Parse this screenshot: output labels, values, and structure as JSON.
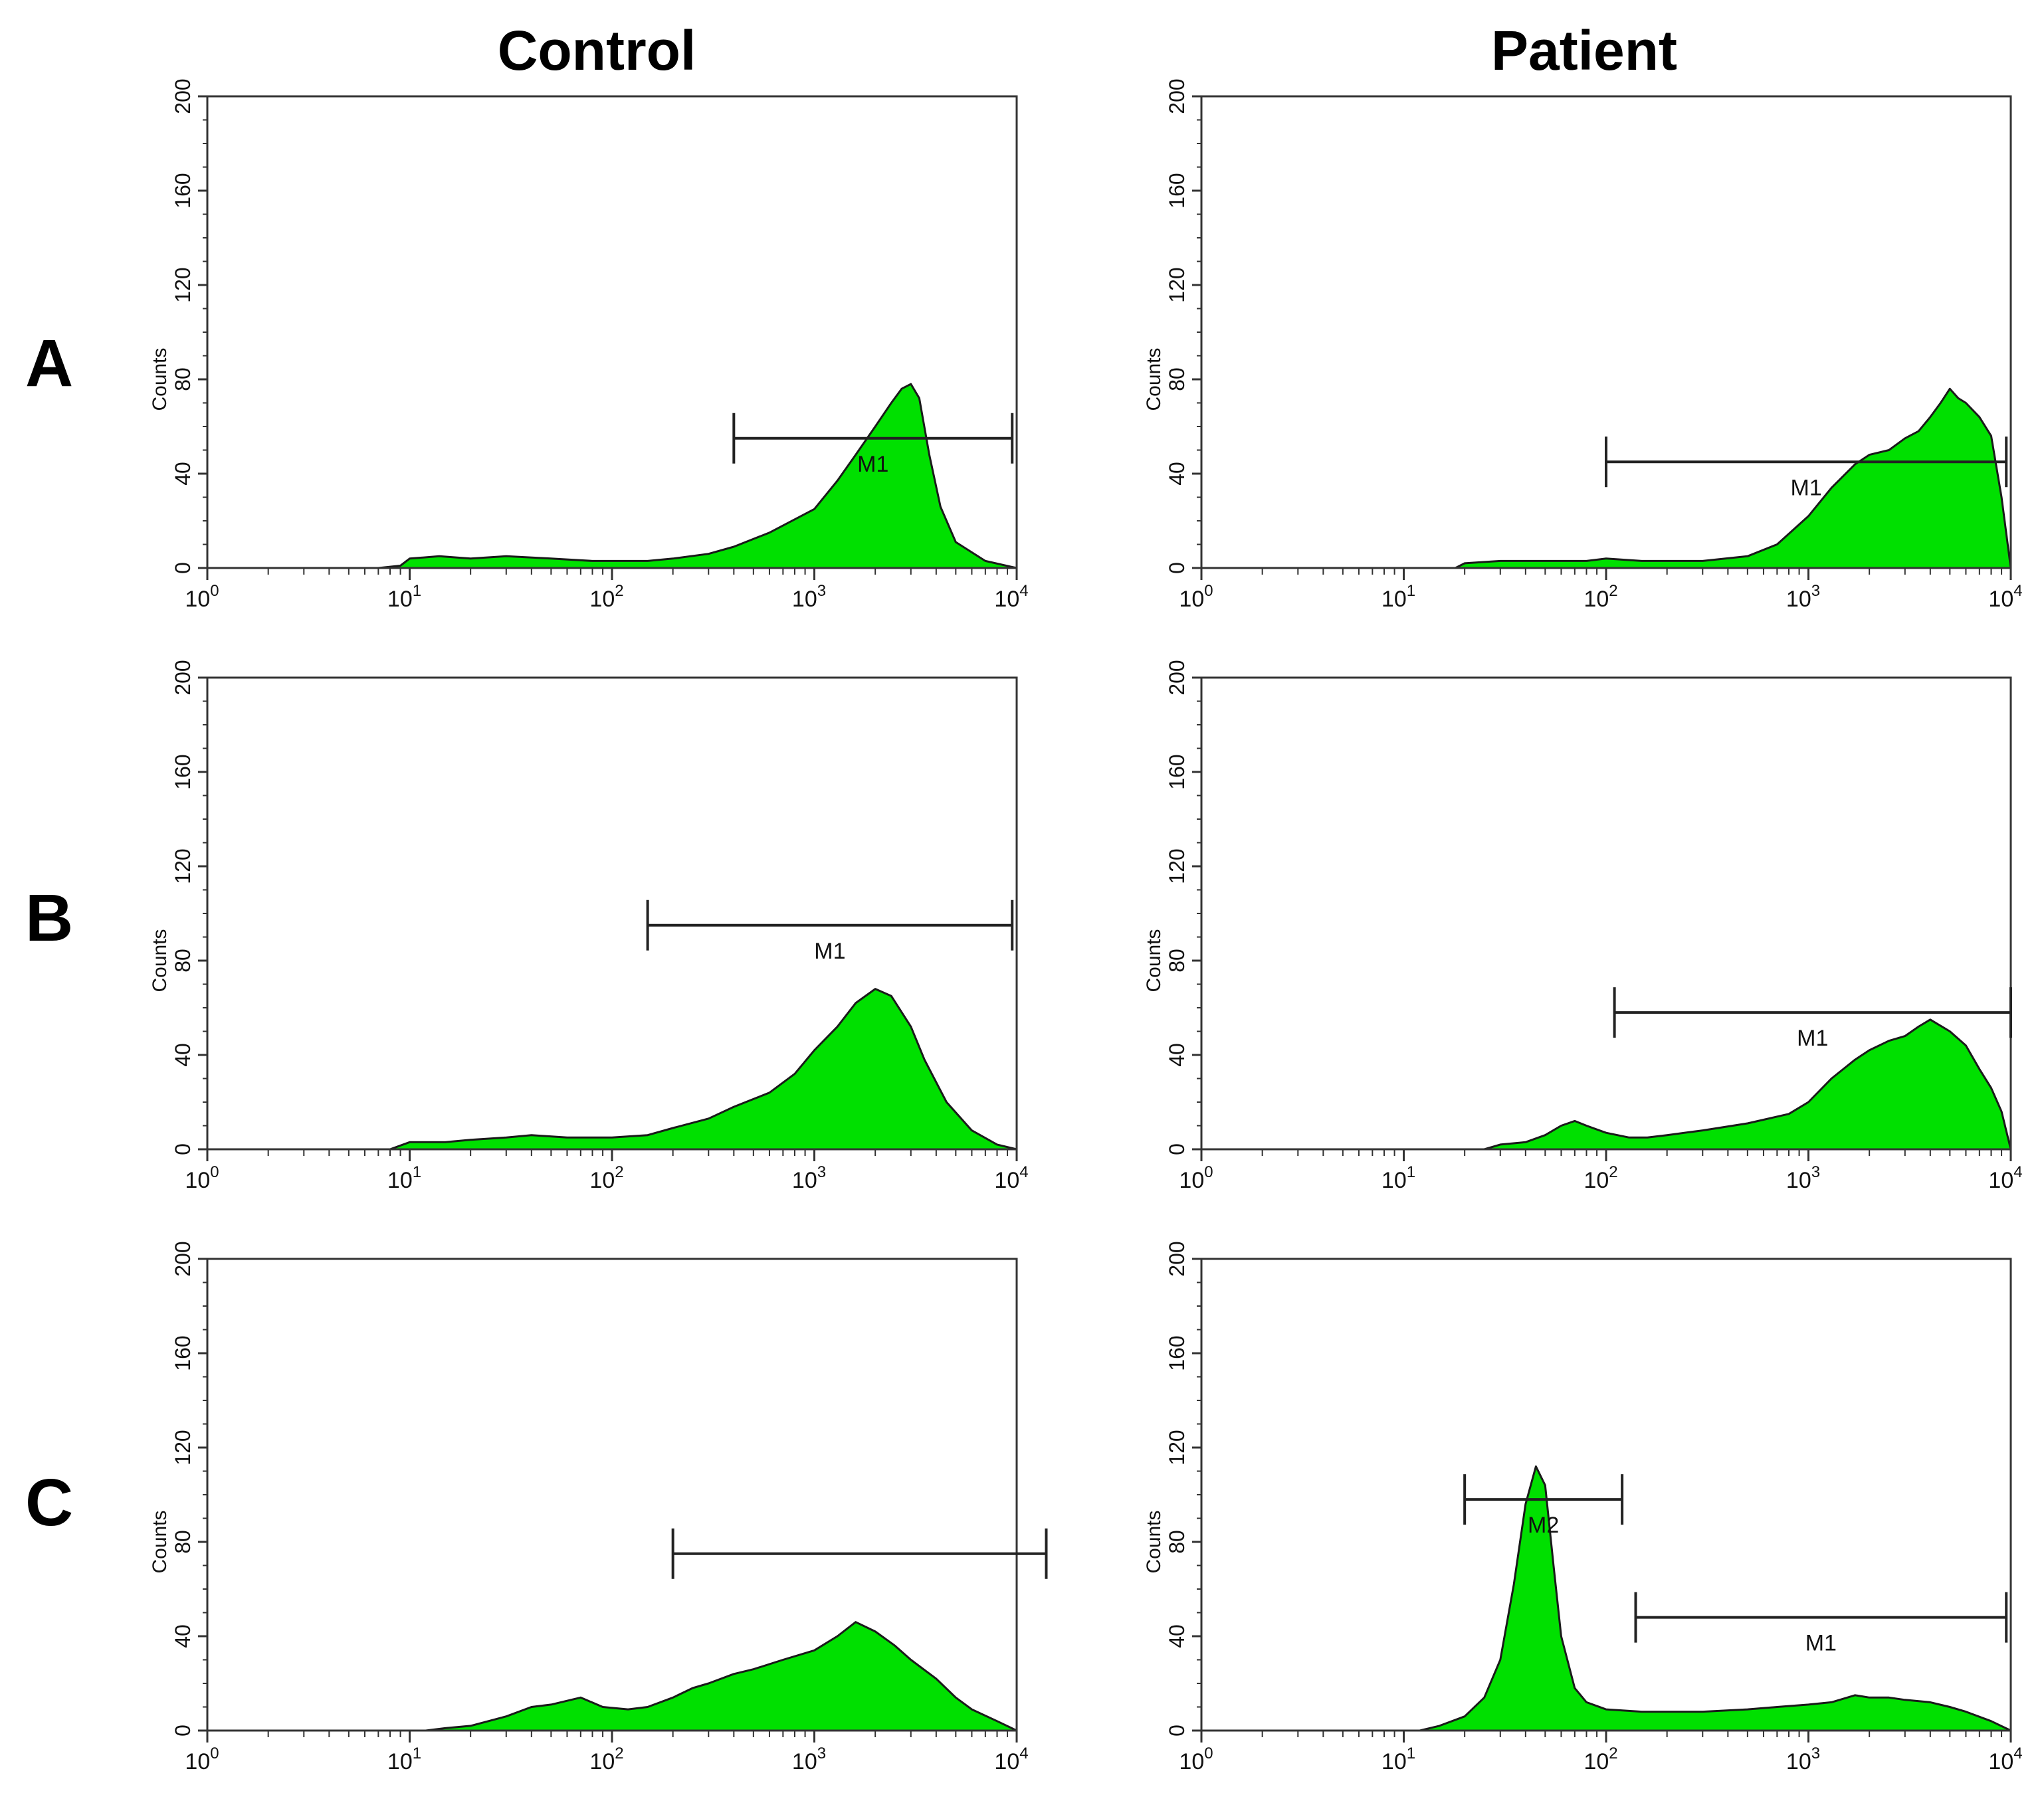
{
  "column_titles": {
    "control": "Control",
    "patient": "Patient"
  },
  "row_labels": [
    "A",
    "B",
    "C"
  ],
  "axis": {
    "ylabel": "Counts",
    "y_ticks": [
      "0",
      "40",
      "80",
      "120",
      "160",
      "200"
    ],
    "x_tick_exponents": [
      "0",
      "1",
      "2",
      "3",
      "4"
    ]
  },
  "style": {
    "fill": "#00e000",
    "outline": "#1a1a1a",
    "frame": "#333333"
  },
  "chart_data": [
    {
      "type": "area",
      "panel": "A-control",
      "row": "A",
      "column": "Control",
      "xscale": "log",
      "xlim": [
        1,
        10000
      ],
      "ylim": [
        0,
        200
      ],
      "ylabel": "Counts",
      "x": [
        1,
        7,
        9,
        10,
        14,
        20,
        30,
        50,
        80,
        100,
        150,
        200,
        300,
        400,
        600,
        1000,
        1300,
        1600,
        2000,
        2400,
        2700,
        3000,
        3300,
        3700,
        4200,
        5000,
        7000,
        10000
      ],
      "y": [
        0,
        0,
        1,
        4,
        5,
        4,
        5,
        4,
        3,
        3,
        3,
        4,
        6,
        9,
        15,
        25,
        37,
        48,
        60,
        70,
        76,
        78,
        72,
        48,
        26,
        11,
        3,
        0
      ],
      "markers": [
        {
          "label": "M1",
          "x1": 400,
          "x2": 9500,
          "y": 55
        }
      ]
    },
    {
      "type": "area",
      "panel": "A-patient",
      "row": "A",
      "column": "Patient",
      "xscale": "log",
      "xlim": [
        1,
        10000
      ],
      "ylim": [
        0,
        200
      ],
      "ylabel": "Counts",
      "x": [
        1,
        18,
        20,
        30,
        50,
        80,
        100,
        150,
        200,
        300,
        500,
        700,
        1000,
        1300,
        1700,
        2000,
        2500,
        3000,
        3500,
        4000,
        4500,
        5000,
        5500,
        6000,
        7000,
        8000,
        9000,
        10000
      ],
      "y": [
        0,
        0,
        2,
        3,
        3,
        3,
        4,
        3,
        3,
        3,
        5,
        10,
        22,
        34,
        44,
        48,
        50,
        55,
        58,
        64,
        70,
        76,
        72,
        70,
        64,
        56,
        30,
        0
      ],
      "markers": [
        {
          "label": "M1",
          "x1": 100,
          "x2": 9500,
          "y": 45
        }
      ]
    },
    {
      "type": "area",
      "panel": "B-control",
      "row": "B",
      "column": "Control",
      "xscale": "log",
      "xlim": [
        1,
        10000
      ],
      "ylim": [
        0,
        200
      ],
      "ylabel": "Counts",
      "x": [
        1,
        8,
        10,
        15,
        20,
        30,
        40,
        60,
        100,
        150,
        200,
        300,
        400,
        600,
        800,
        1000,
        1300,
        1600,
        2000,
        2400,
        3000,
        3500,
        4500,
        6000,
        8000,
        10000
      ],
      "y": [
        0,
        0,
        3,
        3,
        4,
        5,
        6,
        5,
        5,
        6,
        9,
        13,
        18,
        24,
        32,
        42,
        52,
        62,
        68,
        65,
        52,
        38,
        20,
        8,
        2,
        0
      ],
      "markers": [
        {
          "label": "M1",
          "x1": 150,
          "x2": 9500,
          "y": 95
        }
      ]
    },
    {
      "type": "area",
      "panel": "B-patient",
      "row": "B",
      "column": "Patient",
      "xscale": "log",
      "xlim": [
        1,
        10000
      ],
      "ylim": [
        0,
        200
      ],
      "ylabel": "Counts",
      "x": [
        1,
        25,
        30,
        40,
        50,
        60,
        70,
        80,
        100,
        130,
        160,
        200,
        300,
        500,
        800,
        1000,
        1300,
        1700,
        2000,
        2500,
        3000,
        3500,
        4000,
        5000,
        6000,
        7000,
        8000,
        9000,
        10000
      ],
      "y": [
        0,
        0,
        2,
        3,
        6,
        10,
        12,
        10,
        7,
        5,
        5,
        6,
        8,
        11,
        15,
        20,
        30,
        38,
        42,
        46,
        48,
        52,
        55,
        50,
        44,
        34,
        26,
        16,
        0
      ],
      "markers": [
        {
          "label": "M1",
          "x1": 110,
          "x2": 10000,
          "y": 58
        }
      ]
    },
    {
      "type": "area",
      "panel": "C-control",
      "row": "C",
      "column": "Control",
      "xscale": "log",
      "xlim": [
        1,
        10000
      ],
      "ylim": [
        0,
        200
      ],
      "ylabel": "Counts",
      "x": [
        1,
        12,
        15,
        20,
        30,
        40,
        50,
        70,
        90,
        120,
        150,
        200,
        250,
        300,
        400,
        500,
        700,
        1000,
        1300,
        1600,
        2000,
        2500,
        3000,
        4000,
        5000,
        6000,
        8000,
        10000
      ],
      "y": [
        0,
        0,
        1,
        2,
        6,
        10,
        11,
        14,
        10,
        9,
        10,
        14,
        18,
        20,
        24,
        26,
        30,
        34,
        40,
        46,
        42,
        36,
        30,
        22,
        14,
        9,
        4,
        0
      ],
      "markers": [
        {
          "label": "",
          "x1": 200,
          "x2": 14000,
          "y": 75
        }
      ]
    },
    {
      "type": "area",
      "panel": "C-patient",
      "row": "C",
      "column": "Patient",
      "xscale": "log",
      "xlim": [
        1,
        10000
      ],
      "ylim": [
        0,
        200
      ],
      "ylabel": "Counts",
      "x": [
        1,
        12,
        15,
        20,
        25,
        30,
        35,
        40,
        45,
        50,
        55,
        60,
        70,
        80,
        100,
        150,
        200,
        300,
        500,
        700,
        1000,
        1300,
        1700,
        2000,
        2500,
        3000,
        4000,
        5000,
        6000,
        8000,
        10000
      ],
      "y": [
        0,
        0,
        2,
        6,
        14,
        30,
        62,
        96,
        112,
        104,
        70,
        40,
        18,
        12,
        9,
        8,
        8,
        8,
        9,
        10,
        11,
        12,
        15,
        14,
        14,
        13,
        12,
        10,
        8,
        4,
        0
      ],
      "markers": [
        {
          "label": "M2",
          "x1": 20,
          "x2": 120,
          "y": 98
        },
        {
          "label": "M1",
          "x1": 140,
          "x2": 9500,
          "y": 48
        }
      ]
    }
  ]
}
